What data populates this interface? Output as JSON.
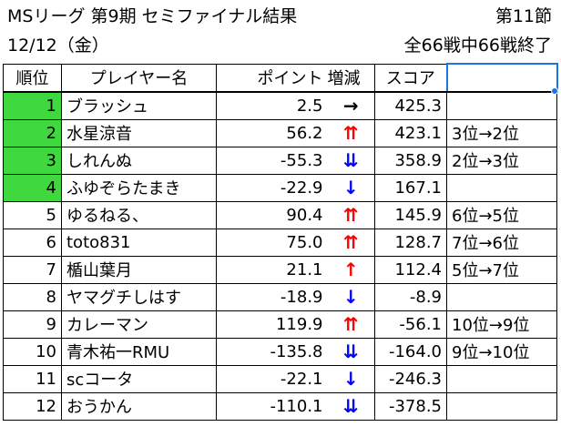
{
  "header": {
    "title": "MSリーグ 第9期 セミファイナル結果",
    "round": "第11節",
    "date": "12/12（金）",
    "progress": "全66戦中66戦終了"
  },
  "columns": {
    "rank": "順位",
    "player": "プレイヤー名",
    "points_part1": "ポイント",
    "points_part2": "増減",
    "score": "スコア",
    "rank_change": ""
  },
  "colors": {
    "highlight": "#3fd83f",
    "up": "#ff0000",
    "down": "#0000ff",
    "selection": "#1a73e8"
  },
  "rows": [
    {
      "rank": "1",
      "player": "ブラッシュ",
      "points": "2.5",
      "trend": "→",
      "trend_type": "flat",
      "score": "425.3",
      "change": "",
      "highlight": true
    },
    {
      "rank": "2",
      "player": "水星涼音",
      "points": "56.2",
      "trend": "⇈",
      "trend_type": "up",
      "score": "423.1",
      "change": "3位→2位",
      "highlight": true
    },
    {
      "rank": "3",
      "player": "しれんぬ",
      "points": "-55.3",
      "trend": "⇊",
      "trend_type": "down",
      "score": "358.9",
      "change": "2位→3位",
      "highlight": true
    },
    {
      "rank": "4",
      "player": "ふゆぞらたまき",
      "points": "-22.9",
      "trend": "↓",
      "trend_type": "down",
      "score": "167.1",
      "change": "",
      "highlight": true
    },
    {
      "rank": "5",
      "player": "ゆるねる、",
      "points": "90.4",
      "trend": "⇈",
      "trend_type": "up",
      "score": "145.9",
      "change": "6位→5位",
      "highlight": false
    },
    {
      "rank": "6",
      "player": "toto831",
      "points": "75.0",
      "trend": "⇈",
      "trend_type": "up",
      "score": "128.7",
      "change": "7位→6位",
      "highlight": false
    },
    {
      "rank": "7",
      "player": "楯山葉月",
      "points": "21.1",
      "trend": "↑",
      "trend_type": "up",
      "score": "112.4",
      "change": "5位→7位",
      "highlight": false
    },
    {
      "rank": "8",
      "player": "ヤマグチしはす",
      "points": "-18.9",
      "trend": "↓",
      "trend_type": "down",
      "score": "-8.9",
      "change": "",
      "highlight": false
    },
    {
      "rank": "9",
      "player": "カレーマン",
      "points": "119.9",
      "trend": "⇈",
      "trend_type": "up",
      "score": "-56.1",
      "change": "10位→9位",
      "highlight": false
    },
    {
      "rank": "10",
      "player": "青木祐一RMU",
      "points": "-135.8",
      "trend": "⇊",
      "trend_type": "down",
      "score": "-164.0",
      "change": "9位→10位",
      "highlight": false
    },
    {
      "rank": "11",
      "player": "scコータ",
      "points": "-22.1",
      "trend": "↓",
      "trend_type": "down",
      "score": "-246.3",
      "change": "",
      "highlight": false
    },
    {
      "rank": "12",
      "player": "おうかん",
      "points": "-110.1",
      "trend": "⇊",
      "trend_type": "down",
      "score": "-378.5",
      "change": "",
      "highlight": false
    }
  ]
}
